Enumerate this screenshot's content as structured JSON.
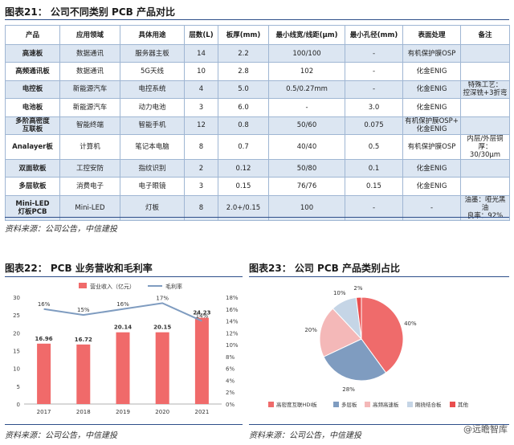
{
  "table_title": "图表21：  公司不同类别 PCB 产品对比",
  "table": {
    "headers": [
      "产品",
      "应用领域",
      "具体用途",
      "层数(L)",
      "板厚(mm)",
      "最小线宽/线距(μm)",
      "最小孔径(mm)",
      "表面处理",
      "备注"
    ],
    "rows": [
      [
        "高速板",
        "数据通讯",
        "服务器主板",
        "14",
        "2.2",
        "100/100",
        "-",
        "有机保护膜OSP",
        ""
      ],
      [
        "高频通讯板",
        "数据通讯",
        "5G天线",
        "10",
        "2.8",
        "102",
        "-",
        "化金ENIG",
        ""
      ],
      [
        "电控板",
        "新能源汽车",
        "电控系统",
        "4",
        "5.0",
        "0.5/0.27mm",
        "-",
        "化金ENIG",
        "特殊工艺：\n控深铣+3折弯"
      ],
      [
        "电池板",
        "新能源汽车",
        "动力电池",
        "3",
        "6.0",
        "-",
        "3.0",
        "化金ENIG",
        ""
      ],
      [
        "多阶高密度\n互联板",
        "智能终端",
        "智能手机",
        "12",
        "0.8",
        "50/60",
        "0.075",
        "有机保护膜OSP+\n化金ENIG",
        ""
      ],
      [
        "Analayer板",
        "计算机",
        "笔记本电脑",
        "8",
        "0.7",
        "40/40",
        "0.5",
        "有机保护膜OSP",
        "内层/外层铜厚：\n30/30μm"
      ],
      [
        "双面软板",
        "工控安防",
        "指纹识别",
        "2",
        "0.12",
        "50/80",
        "0.1",
        "化金ENIG",
        ""
      ],
      [
        "多层软板",
        "消费电子",
        "电子眼镜",
        "3",
        "0.15",
        "76/76",
        "0.15",
        "化金ENIG",
        ""
      ],
      [
        "Mini-LED\n灯板PCB",
        "Mini-LED",
        "灯板",
        "8",
        "2.0+/0.15",
        "100",
        "-",
        "-",
        "油墨：哑光黑油\n良率：92%"
      ]
    ]
  },
  "source_text": "资料来源：公司公告，中信建投",
  "chart22_title": "图表22：  PCB 业务营收和毛利率",
  "chart23_title": "图表23：  公司 PCB 产品类别占比",
  "watermark": "@远瞻智库",
  "colors": {
    "accent_blue": "#2d4e8a",
    "bar_red": "#f06a6a",
    "line_blue": "#7f9cc0",
    "table_shade": "#dce6f2"
  },
  "chart_data": [
    {
      "type": "bar",
      "categories": [
        "2017",
        "2018",
        "2019",
        "2020",
        "2021"
      ],
      "series": [
        {
          "name": "营业收入（亿元）",
          "values": [
            16.96,
            16.72,
            20.14,
            20.15,
            24.23
          ],
          "labels": [
            "16.96",
            "16.72",
            "20.14",
            "20.15",
            "24.23"
          ]
        },
        {
          "name": "毛利率",
          "type": "line",
          "values": [
            16,
            15,
            16,
            17,
            14
          ],
          "labels": [
            "16%",
            "15%",
            "16%",
            "17%",
            "14%"
          ]
        }
      ],
      "ylim": [
        0,
        30
      ],
      "yticks": [
        "0",
        "5",
        "10",
        "15",
        "20",
        "25",
        "30"
      ],
      "y2lim": [
        0,
        18
      ],
      "y2ticks": [
        "0%",
        "2%",
        "4%",
        "6%",
        "8%",
        "10%",
        "12%",
        "14%",
        "16%",
        "18%"
      ]
    },
    {
      "type": "pie",
      "slices": [
        {
          "name": "高密度互联HDI板",
          "value": 40,
          "label": "40%",
          "color": "#ef6b6b"
        },
        {
          "name": "多层板",
          "value": 28,
          "label": "28%",
          "color": "#7f9cc0"
        },
        {
          "name": "高频高速板",
          "value": 20,
          "label": "20%",
          "color": "#f4b8b8"
        },
        {
          "name": "刚挠结合板",
          "value": 10,
          "label": "10%",
          "color": "#c5d5e6"
        },
        {
          "name": "其他",
          "value": 2,
          "label": "2%",
          "color": "#e94e4e"
        }
      ]
    }
  ]
}
